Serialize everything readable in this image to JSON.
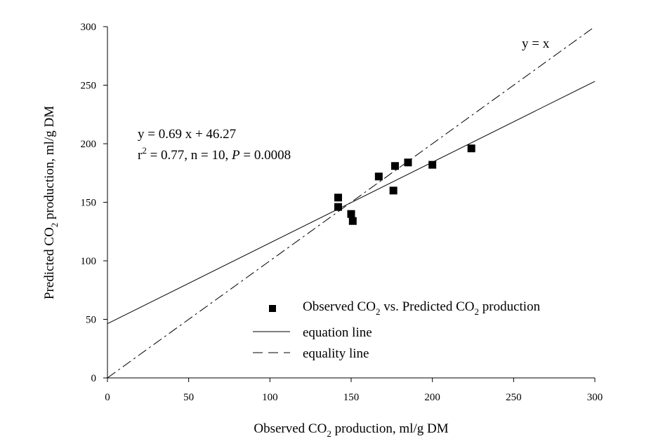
{
  "chart_data": {
    "type": "scatter",
    "xlim": [
      0,
      300
    ],
    "ylim": [
      0,
      300
    ],
    "x_ticks": [
      0,
      50,
      100,
      150,
      200,
      250,
      300
    ],
    "y_ticks": [
      0,
      50,
      100,
      150,
      200,
      250,
      300
    ],
    "xlabel": {
      "pre": "Observed CO",
      "sub": "2",
      "post": " production, ml/g DM"
    },
    "ylabel": {
      "pre": "Predicted CO",
      "sub": "2",
      "post": " production, ml/g DM"
    },
    "grid": false,
    "series": [
      {
        "name": "Observed CO2 vs. Predicted CO2 production",
        "marker": "square",
        "color": "#000000",
        "points": [
          {
            "x": 142,
            "y": 154
          },
          {
            "x": 142,
            "y": 146
          },
          {
            "x": 150,
            "y": 140
          },
          {
            "x": 151,
            "y": 134
          },
          {
            "x": 167,
            "y": 172
          },
          {
            "x": 176,
            "y": 160
          },
          {
            "x": 177,
            "y": 181
          },
          {
            "x": 185,
            "y": 184
          },
          {
            "x": 200,
            "y": 182
          },
          {
            "x": 224,
            "y": 196
          }
        ]
      }
    ],
    "lines": [
      {
        "name": "equation line",
        "style": "solid",
        "slope": 0.69,
        "intercept": 46.27,
        "x_range": [
          0,
          300
        ]
      },
      {
        "name": "equality line",
        "style": "dash-dot",
        "slope": 1,
        "intercept": 0,
        "x_range": [
          0,
          300
        ]
      }
    ],
    "annotations": {
      "equation": "y = 0.69 x + 46.27",
      "stats_r": "r",
      "stats_exp": "2",
      "stats_mid": " = 0.77, n = 10, ",
      "stats_p": "P",
      "stats_end": " = 0.0008",
      "identity": "y = x"
    },
    "legend": {
      "position": "bottom-right",
      "entries": [
        {
          "kind": "marker",
          "pre": "Observed CO",
          "sub1": "2",
          "mid": " vs. Predicted CO",
          "sub2": "2",
          "post": " production"
        },
        {
          "kind": "solid",
          "label": "equation line"
        },
        {
          "kind": "dash",
          "label": "equality line"
        }
      ]
    }
  }
}
